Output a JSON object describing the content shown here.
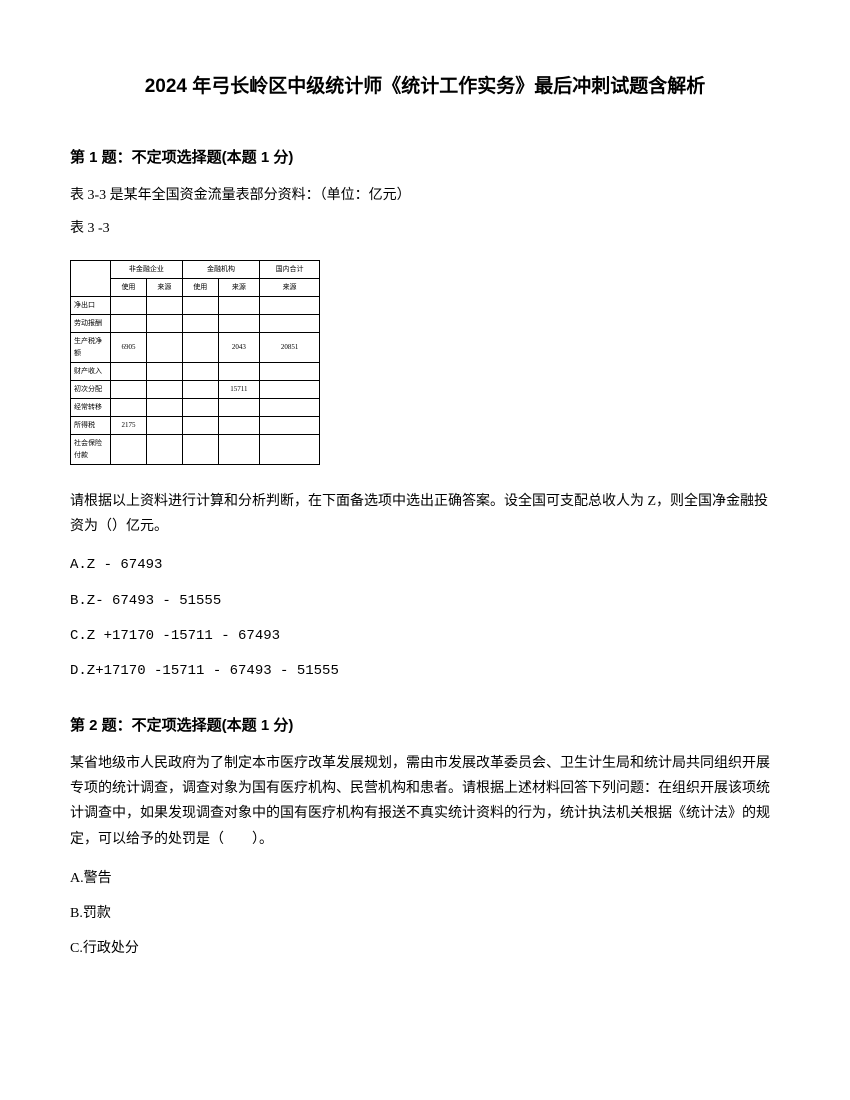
{
  "title": "2024 年弓长岭区中级统计师《统计工作实务》最后冲刺试题含解析",
  "q1": {
    "header": "第 1 题：不定项选择题(本题 1 分)",
    "intro1": "表 3-3 是某年全国资金流量表部分资料：（单位：亿元）",
    "intro2": "表 3 -3",
    "table": {
      "r0": {
        "c1": "非金融企业",
        "c2": "金融机构",
        "c3": "",
        "c4": "国内合计"
      },
      "r1": {
        "c0": "",
        "c1": "使用",
        "c2": "来源",
        "c3": "使用",
        "c4": "来源",
        "c5": "来源"
      },
      "r2": {
        "c0": "净出口",
        "c1": "",
        "c2": "",
        "c3": "",
        "c4": "",
        "c5": ""
      },
      "r3": {
        "c0": "劳动报酬",
        "c1": "",
        "c2": "",
        "c3": "",
        "c4": "",
        "c5": ""
      },
      "r4": {
        "c0": "生产税净额",
        "c1": "6905",
        "c2": "",
        "c3": "",
        "c4": "2043",
        "c5": "20851"
      },
      "r5": {
        "c0": "财产收入",
        "c1": "",
        "c2": "",
        "c3": "",
        "c4": "",
        "c5": ""
      },
      "r6": {
        "c0": "初次分配",
        "c1": "",
        "c2": "",
        "c3": "",
        "c4": "15711",
        "c5": ""
      },
      "r7": {
        "c0": "经常转移",
        "c1": "",
        "c2": "",
        "c3": "",
        "c4": "",
        "c5": ""
      },
      "r8": {
        "c0": "所得税",
        "c1": "2175",
        "c2": "",
        "c3": "",
        "c4": "",
        "c5": ""
      },
      "r9": {
        "c0": "社会保险付款",
        "c1": "",
        "c2": "",
        "c3": "",
        "c4": "",
        "c5": ""
      }
    },
    "questionText": "请根据以上资料进行计算和分析判断，在下面备选项中选出正确答案。设全国可支配总收人为 Z，则全国净金融投资为（）亿元。",
    "optA": "A.Z - 67493",
    "optB": "B.Z- 67493 - 51555",
    "optC": "C.Z +17170 -15711 - 67493",
    "optD": "D.Z+17170 -15711 - 67493 - 51555"
  },
  "q2": {
    "header": "第 2 题：不定项选择题(本题 1 分)",
    "questionText": "某省地级市人民政府为了制定本市医疗改革发展规划，需由市发展改革委员会、卫生计生局和统计局共同组织开展专项的统计调查，调查对象为国有医疗机构、民营机构和患者。请根据上述材料回答下列问题：在组织开展该项统计调查中，如果发现调查对象中的国有医疗机构有报送不真实统计资料的行为，统计执法机关根据《统计法》的规定，可以给予的处罚是（　　）。",
    "optA": "A.警告",
    "optB": "B.罚款",
    "optC": "C.行政处分"
  }
}
